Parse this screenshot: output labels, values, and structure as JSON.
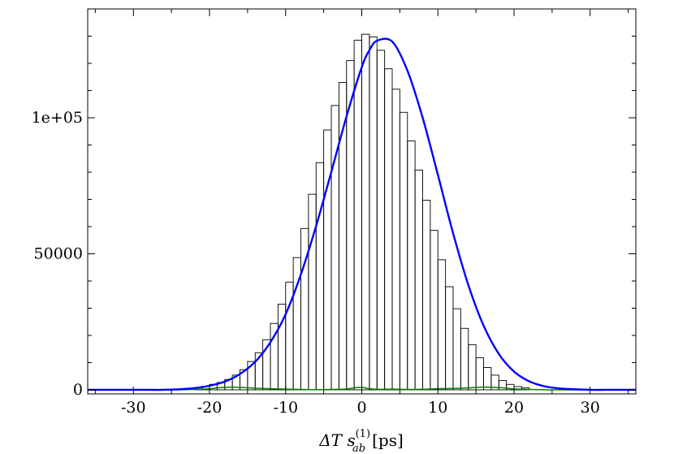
{
  "chart_data": {
    "type": "bar",
    "title": "",
    "xlabel": "ΔT s_ab^(1) [ps]",
    "xlabel_parts": {
      "symbol": "ΔT s",
      "subscript": "ab",
      "superscript": "(1)",
      "unit": "[ps]"
    },
    "ylabel": "",
    "xlim": [
      -36,
      36
    ],
    "ylim": [
      -1500,
      140000
    ],
    "x_ticks": [
      -30,
      -20,
      -10,
      0,
      10,
      20,
      30
    ],
    "y_ticks": [
      0,
      50000,
      100000
    ],
    "x_tick_labels": [
      "-30",
      "-20",
      "-10",
      "0",
      "10",
      "20",
      "30"
    ],
    "y_tick_labels": [
      "0",
      "50000",
      "1e+05"
    ],
    "grid": false,
    "colors": {
      "histogram": "#000000",
      "fit": "#0000ff",
      "residual": "#008000"
    },
    "histogram": {
      "bin_width": 1,
      "bin_centers": [
        -21.5,
        -20.5,
        -19.5,
        -18.5,
        -17.5,
        -16.5,
        -15.5,
        -14.5,
        -13.5,
        -12.5,
        -11.5,
        -10.5,
        -9.5,
        -8.5,
        -7.5,
        -6.5,
        -5.5,
        -4.5,
        -3.5,
        -2.5,
        -1.5,
        -0.5,
        0.5,
        1.5,
        2.5,
        3.5,
        4.5,
        5.5,
        6.5,
        7.5,
        8.5,
        9.5,
        10.5,
        11.5,
        12.5,
        13.5,
        14.5,
        15.5,
        16.5,
        17.5,
        18.5,
        19.5,
        20.5,
        21.5
      ],
      "values": [
        800,
        1300,
        2000,
        2700,
        3800,
        5400,
        7400,
        10400,
        13600,
        18400,
        24400,
        31500,
        39600,
        48600,
        59300,
        71900,
        83500,
        95500,
        104500,
        113000,
        121000,
        128500,
        130700,
        129700,
        124800,
        118000,
        110500,
        102000,
        91500,
        80800,
        69700,
        58600,
        47800,
        37900,
        29800,
        22600,
        16600,
        11800,
        8200,
        5400,
        3400,
        2000,
        1200,
        700
      ]
    },
    "series": [
      {
        "kind": "fit-curve",
        "x": [
          -36,
          -34,
          -32,
          -30,
          -28,
          -26,
          -24,
          -22,
          -20,
          -18,
          -16,
          -14,
          -12,
          -10,
          -8,
          -6,
          -4,
          -2,
          0,
          1,
          2,
          4,
          6,
          8,
          10,
          12,
          14,
          16,
          18,
          20,
          22,
          24,
          26,
          28,
          30,
          32,
          34,
          36
        ],
        "values": [
          0,
          0,
          0,
          0,
          0,
          0,
          200,
          600,
          1500,
          3000,
          5800,
          10300,
          17500,
          27800,
          42400,
          60200,
          80100,
          100500,
          118600,
          124800,
          128300,
          128000,
          117300,
          100000,
          79000,
          57500,
          38500,
          23600,
          13200,
          6700,
          3100,
          1300,
          500,
          200,
          0,
          0,
          0,
          0
        ]
      },
      {
        "kind": "residual-curve",
        "x": [
          -36,
          -30,
          -25,
          -22,
          -20,
          -19,
          -18,
          -17,
          -16,
          -14,
          -12,
          -10,
          -8,
          -6,
          -4,
          -2,
          -1,
          0,
          1,
          2,
          4,
          6,
          8,
          10,
          12,
          14,
          15,
          16,
          17,
          18,
          19,
          20,
          22,
          25,
          30,
          36
        ],
        "values": [
          0,
          0,
          0,
          150,
          400,
          700,
          900,
          1000,
          900,
          600,
          400,
          250,
          150,
          50,
          150,
          300,
          700,
          900,
          400,
          200,
          250,
          150,
          200,
          400,
          500,
          700,
          900,
          1000,
          950,
          800,
          600,
          300,
          150,
          0,
          0,
          0
        ]
      }
    ]
  }
}
